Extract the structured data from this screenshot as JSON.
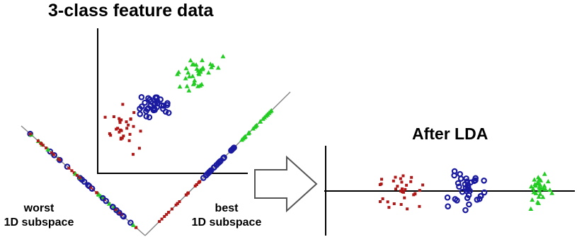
{
  "titles": {
    "main": "3-class feature data",
    "after": "After LDA"
  },
  "labels": {
    "worst_line1": "worst",
    "worst_line2": "1D subspace",
    "best_line1": "best",
    "best_line2": "1D subspace"
  },
  "colors": {
    "class1": "#b01818",
    "class2": "#1a1aa0",
    "class3": "#22cc22",
    "axis": "#000000"
  },
  "icons": {
    "arrow": "right-arrow-outline-icon"
  }
}
